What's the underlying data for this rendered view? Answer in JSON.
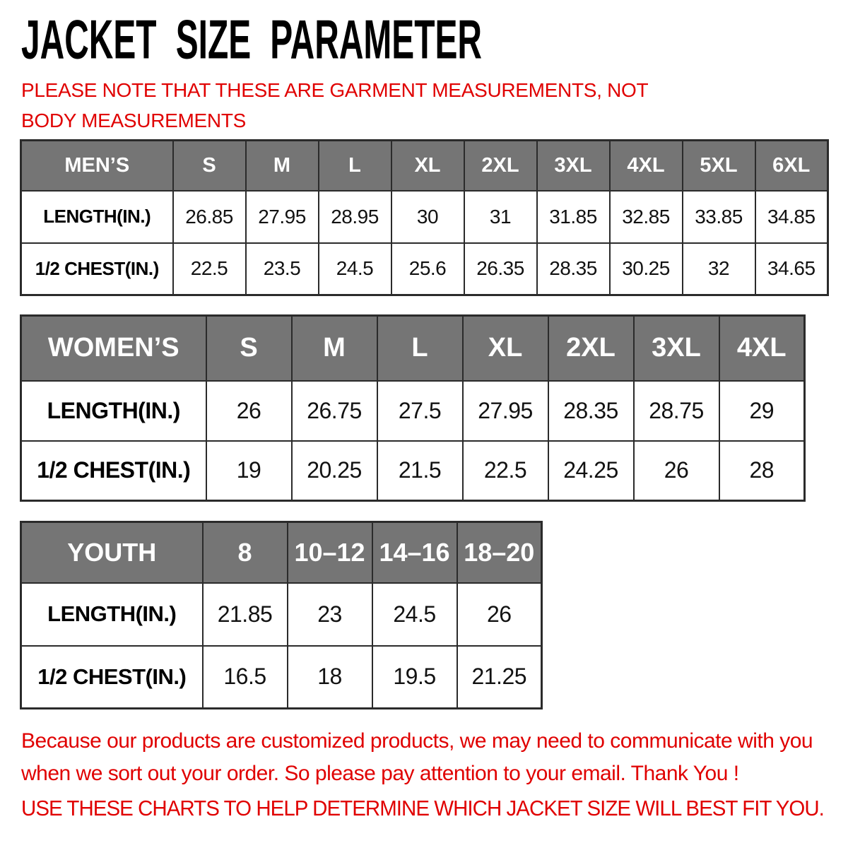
{
  "title": "JACKET SIZE PARAMETER",
  "note": "PLEASE NOTE THAT THESE ARE GARMENT MEASUREMENTS, NOT BODY MEASUREMENTS",
  "colors": {
    "accent_red": "#e00000",
    "header_gray": "#757575",
    "border_dark": "#2b2b2b",
    "background": "#ffffff"
  },
  "chart_data": [
    {
      "type": "table",
      "id": "mens",
      "title": "MEN’S",
      "columns": [
        "MEN’S",
        "S",
        "M",
        "L",
        "XL",
        "2XL",
        "3XL",
        "4XL",
        "5XL",
        "6XL"
      ],
      "rows": [
        {
          "label": "LENGTH(IN.)",
          "values": [
            "26.85",
            "27.95",
            "28.95",
            "30",
            "31",
            "31.85",
            "32.85",
            "33.85",
            "34.85"
          ]
        },
        {
          "label": "1/2 CHEST(IN.)",
          "values": [
            "22.5",
            "23.5",
            "24.5",
            "25.6",
            "26.35",
            "28.35",
            "30.25",
            "32",
            "34.65"
          ]
        }
      ]
    },
    {
      "type": "table",
      "id": "womens",
      "title": "WOMEN’S",
      "columns": [
        "WOMEN’S",
        "S",
        "M",
        "L",
        "XL",
        "2XL",
        "3XL",
        "4XL"
      ],
      "rows": [
        {
          "label": "LENGTH(IN.)",
          "values": [
            "26",
            "26.75",
            "27.5",
            "27.95",
            "28.35",
            "28.75",
            "29"
          ]
        },
        {
          "label": "1/2 CHEST(IN.)",
          "values": [
            "19",
            "20.25",
            "21.5",
            "22.5",
            "24.25",
            "26",
            "28"
          ]
        }
      ]
    },
    {
      "type": "table",
      "id": "youth",
      "title": "YOUTH",
      "columns": [
        "YOUTH",
        "8",
        "10–12",
        "14–16",
        "18–20"
      ],
      "rows": [
        {
          "label": "LENGTH(IN.)",
          "values": [
            "21.85",
            "23",
            "24.5",
            "26"
          ]
        },
        {
          "label": "1/2 CHEST(IN.)",
          "values": [
            "16.5",
            "18",
            "19.5",
            "21.25"
          ]
        }
      ]
    }
  ],
  "footer": {
    "paragraph": "Because our products are customized products, we may need to communicate with you when we sort out your order. So please pay attention to your email. Thank You !",
    "final_line": "USE THESE CHARTS TO HELP DETERMINE WHICH JACKET SIZE WILL BEST FIT YOU."
  }
}
